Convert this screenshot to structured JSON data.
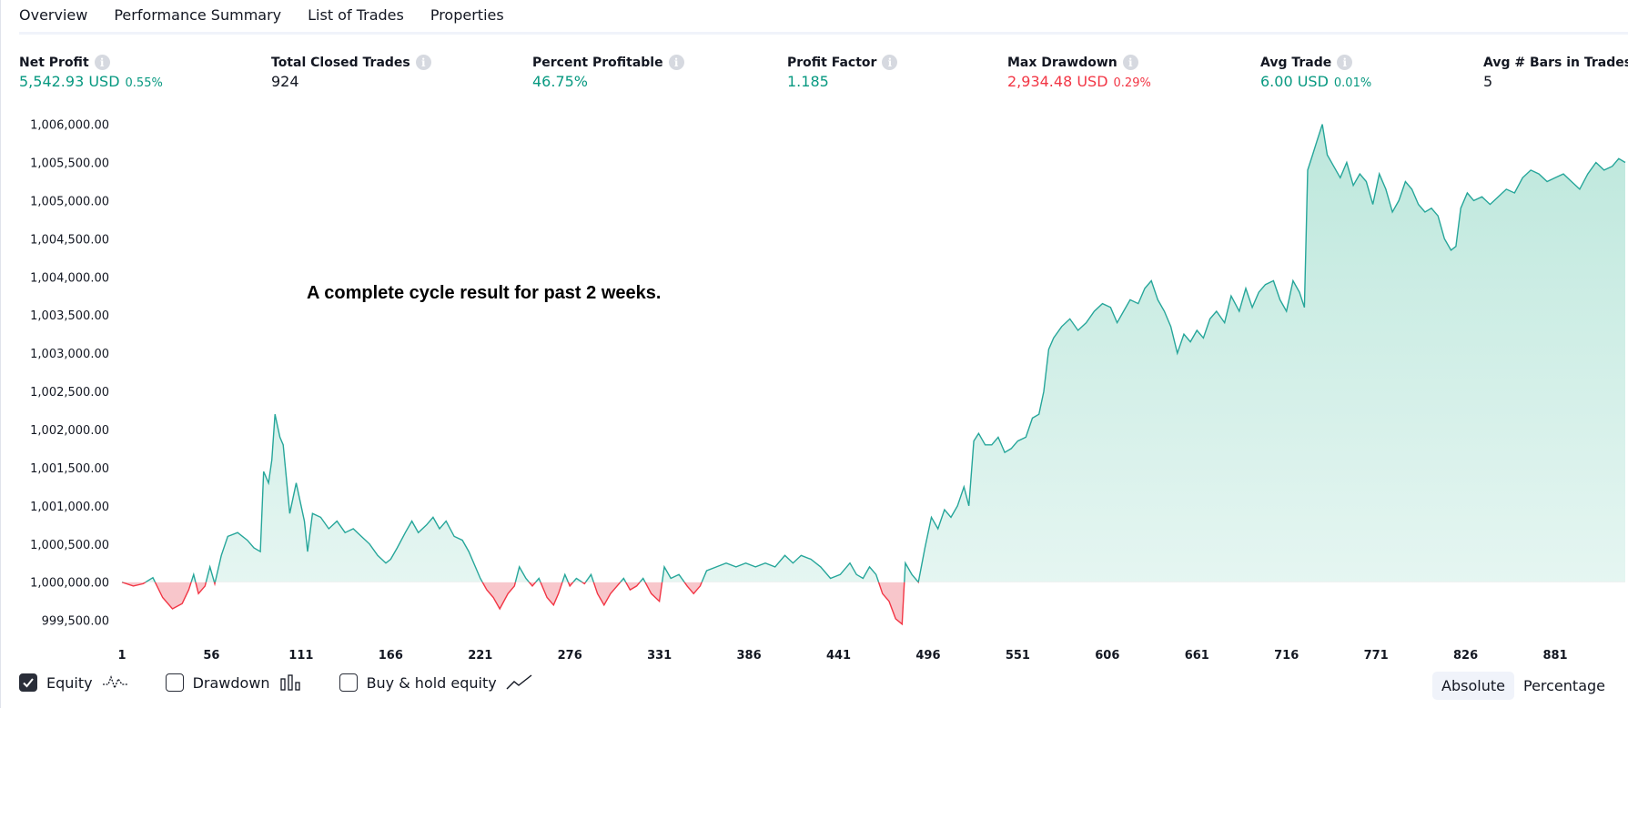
{
  "tabs": [
    {
      "label": "Overview",
      "active": true
    },
    {
      "label": "Performance Summary",
      "active": false
    },
    {
      "label": "List of Trades",
      "active": false
    },
    {
      "label": "Properties",
      "active": false
    }
  ],
  "stats": [
    {
      "label": "Net Profit",
      "value": "5,542.93 USD",
      "sub": "0.55%",
      "color": "green"
    },
    {
      "label": "Total Closed Trades",
      "value": "924",
      "sub": "",
      "color": "dark"
    },
    {
      "label": "Percent Profitable",
      "value": "46.75%",
      "sub": "",
      "color": "green"
    },
    {
      "label": "Profit Factor",
      "value": "1.185",
      "sub": "",
      "color": "green"
    },
    {
      "label": "Max Drawdown",
      "value": "2,934.48 USD",
      "sub": "0.29%",
      "color": "red"
    },
    {
      "label": "Avg Trade",
      "value": "6.00 USD",
      "sub": "0.01%",
      "color": "green"
    },
    {
      "label": "Avg # Bars in Trades",
      "value": "5",
      "sub": "",
      "color": "dark"
    }
  ],
  "annotation": "A complete cycle result for past 2 weeks.",
  "legend": {
    "equity_label": "Equity",
    "drawdown_label": "Drawdown",
    "buyhold_label": "Buy & hold equity"
  },
  "toggle": {
    "absolute_label": "Absolute",
    "percentage_label": "Percentage"
  },
  "colors": {
    "positive": "#26a69a",
    "negative": "#f23645",
    "positive_fill": "#cdeee6",
    "negative_fill": "#fcd6d9"
  },
  "chart_data": {
    "type": "area",
    "baseline": 1000000,
    "y_ticks": [
      "1,006,000.00",
      "1,005,500.00",
      "1,005,000.00",
      "1,004,500.00",
      "1,004,000.00",
      "1,003,500.00",
      "1,003,000.00",
      "1,002,500.00",
      "1,002,000.00",
      "1,001,500.00",
      "1,001,000.00",
      "1,000,500.00",
      "1,000,000.00",
      "999,500.00"
    ],
    "y_tick_values": [
      1006000,
      1005500,
      1005000,
      1004500,
      1004000,
      1003500,
      1003000,
      1002500,
      1002000,
      1001500,
      1001000,
      1000500,
      1000000,
      999500
    ],
    "x_ticks": [
      "1",
      "56",
      "111",
      "166",
      "221",
      "276",
      "331",
      "386",
      "441",
      "496",
      "551",
      "606",
      "661",
      "716",
      "771",
      "826",
      "881"
    ],
    "x_tick_values": [
      1,
      56,
      111,
      166,
      221,
      276,
      331,
      386,
      441,
      496,
      551,
      606,
      661,
      716,
      771,
      826,
      881
    ],
    "xlim": [
      1,
      924
    ],
    "ylim": [
      999400,
      1006150
    ],
    "series": [
      {
        "points": [
          [
            1,
            1000000
          ],
          [
            8,
            999950
          ],
          [
            14,
            999980
          ],
          [
            20,
            1000060
          ],
          [
            26,
            999800
          ],
          [
            32,
            999650
          ],
          [
            38,
            999720
          ],
          [
            42,
            999900
          ],
          [
            45,
            1000100
          ],
          [
            48,
            999850
          ],
          [
            52,
            999950
          ],
          [
            55,
            1000200
          ],
          [
            58,
            999980
          ],
          [
            62,
            1000350
          ],
          [
            66,
            1000600
          ],
          [
            72,
            1000650
          ],
          [
            78,
            1000550
          ],
          [
            82,
            1000450
          ],
          [
            86,
            1000400
          ],
          [
            88,
            1001450
          ],
          [
            91,
            1001300
          ],
          [
            93,
            1001600
          ],
          [
            95,
            1002200
          ],
          [
            98,
            1001900
          ],
          [
            100,
            1001800
          ],
          [
            104,
            1000900
          ],
          [
            108,
            1001300
          ],
          [
            111,
            1001000
          ],
          [
            113,
            1000800
          ],
          [
            115,
            1000400
          ],
          [
            118,
            1000900
          ],
          [
            123,
            1000850
          ],
          [
            128,
            1000700
          ],
          [
            133,
            1000800
          ],
          [
            138,
            1000650
          ],
          [
            143,
            1000700
          ],
          [
            148,
            1000600
          ],
          [
            153,
            1000500
          ],
          [
            158,
            1000350
          ],
          [
            163,
            1000250
          ],
          [
            166,
            1000300
          ],
          [
            170,
            1000450
          ],
          [
            175,
            1000650
          ],
          [
            179,
            1000800
          ],
          [
            183,
            1000650
          ],
          [
            188,
            1000750
          ],
          [
            192,
            1000850
          ],
          [
            196,
            1000700
          ],
          [
            200,
            1000800
          ],
          [
            205,
            1000600
          ],
          [
            210,
            1000550
          ],
          [
            214,
            1000400
          ],
          [
            218,
            1000200
          ],
          [
            221,
            1000050
          ],
          [
            225,
            999900
          ],
          [
            229,
            999800
          ],
          [
            233,
            999650
          ],
          [
            238,
            999850
          ],
          [
            242,
            999950
          ],
          [
            245,
            1000200
          ],
          [
            249,
            1000050
          ],
          [
            253,
            999950
          ],
          [
            257,
            1000050
          ],
          [
            262,
            999800
          ],
          [
            266,
            999700
          ],
          [
            269,
            999850
          ],
          [
            273,
            1000100
          ],
          [
            276,
            999950
          ],
          [
            280,
            1000050
          ],
          [
            285,
            999980
          ],
          [
            289,
            1000100
          ],
          [
            293,
            999850
          ],
          [
            297,
            999700
          ],
          [
            301,
            999850
          ],
          [
            305,
            999950
          ],
          [
            309,
            1000050
          ],
          [
            313,
            999900
          ],
          [
            317,
            999950
          ],
          [
            321,
            1000050
          ],
          [
            326,
            999850
          ],
          [
            331,
            999750
          ],
          [
            334,
            1000200
          ],
          [
            338,
            1000050
          ],
          [
            343,
            1000100
          ],
          [
            348,
            999950
          ],
          [
            352,
            999850
          ],
          [
            356,
            999950
          ],
          [
            360,
            1000150
          ],
          [
            366,
            1000200
          ],
          [
            372,
            1000250
          ],
          [
            378,
            1000200
          ],
          [
            384,
            1000250
          ],
          [
            390,
            1000200
          ],
          [
            396,
            1000250
          ],
          [
            402,
            1000200
          ],
          [
            408,
            1000350
          ],
          [
            413,
            1000250
          ],
          [
            418,
            1000350
          ],
          [
            424,
            1000300
          ],
          [
            430,
            1000200
          ],
          [
            436,
            1000050
          ],
          [
            442,
            1000100
          ],
          [
            448,
            1000250
          ],
          [
            452,
            1000100
          ],
          [
            456,
            1000050
          ],
          [
            460,
            1000200
          ],
          [
            464,
            1000100
          ],
          [
            468,
            999850
          ],
          [
            472,
            999750
          ],
          [
            476,
            999520
          ],
          [
            480,
            999450
          ],
          [
            482,
            1000250
          ],
          [
            486,
            1000100
          ],
          [
            490,
            1000000
          ],
          [
            494,
            1000450
          ],
          [
            498,
            1000850
          ],
          [
            502,
            1000700
          ],
          [
            506,
            1000950
          ],
          [
            510,
            1000850
          ],
          [
            514,
            1001000
          ],
          [
            518,
            1001250
          ],
          [
            521,
            1001000
          ],
          [
            524,
            1001850
          ],
          [
            527,
            1001950
          ],
          [
            531,
            1001800
          ],
          [
            535,
            1001800
          ],
          [
            539,
            1001900
          ],
          [
            543,
            1001700
          ],
          [
            547,
            1001750
          ],
          [
            551,
            1001850
          ],
          [
            556,
            1001900
          ],
          [
            560,
            1002150
          ],
          [
            564,
            1002200
          ],
          [
            567,
            1002500
          ],
          [
            570,
            1003050
          ],
          [
            573,
            1003200
          ],
          [
            578,
            1003350
          ],
          [
            583,
            1003450
          ],
          [
            588,
            1003300
          ],
          [
            593,
            1003400
          ],
          [
            598,
            1003550
          ],
          [
            603,
            1003650
          ],
          [
            608,
            1003600
          ],
          [
            612,
            1003400
          ],
          [
            616,
            1003550
          ],
          [
            620,
            1003700
          ],
          [
            625,
            1003650
          ],
          [
            629,
            1003850
          ],
          [
            633,
            1003950
          ],
          [
            637,
            1003700
          ],
          [
            641,
            1003550
          ],
          [
            645,
            1003350
          ],
          [
            649,
            1003000
          ],
          [
            653,
            1003250
          ],
          [
            657,
            1003150
          ],
          [
            661,
            1003300
          ],
          [
            665,
            1003200
          ],
          [
            669,
            1003450
          ],
          [
            673,
            1003550
          ],
          [
            678,
            1003400
          ],
          [
            682,
            1003750
          ],
          [
            687,
            1003550
          ],
          [
            691,
            1003850
          ],
          [
            695,
            1003600
          ],
          [
            699,
            1003800
          ],
          [
            703,
            1003900
          ],
          [
            708,
            1003950
          ],
          [
            712,
            1003700
          ],
          [
            716,
            1003550
          ],
          [
            720,
            1003950
          ],
          [
            724,
            1003800
          ],
          [
            727,
            1003600
          ],
          [
            729,
            1005400
          ],
          [
            732,
            1005600
          ],
          [
            735,
            1005800
          ],
          [
            738,
            1006000
          ],
          [
            741,
            1005600
          ],
          [
            745,
            1005450
          ],
          [
            749,
            1005300
          ],
          [
            753,
            1005500
          ],
          [
            757,
            1005200
          ],
          [
            761,
            1005350
          ],
          [
            765,
            1005250
          ],
          [
            769,
            1004950
          ],
          [
            773,
            1005350
          ],
          [
            777,
            1005150
          ],
          [
            781,
            1004850
          ],
          [
            785,
            1005000
          ],
          [
            789,
            1005250
          ],
          [
            793,
            1005150
          ],
          [
            797,
            1004950
          ],
          [
            801,
            1004850
          ],
          [
            805,
            1004900
          ],
          [
            809,
            1004800
          ],
          [
            813,
            1004500
          ],
          [
            817,
            1004350
          ],
          [
            820,
            1004400
          ],
          [
            823,
            1004900
          ],
          [
            827,
            1005100
          ],
          [
            831,
            1005000
          ],
          [
            836,
            1005050
          ],
          [
            841,
            1004950
          ],
          [
            846,
            1005050
          ],
          [
            851,
            1005150
          ],
          [
            856,
            1005100
          ],
          [
            861,
            1005300
          ],
          [
            866,
            1005400
          ],
          [
            871,
            1005350
          ],
          [
            876,
            1005250
          ],
          [
            881,
            1005300
          ],
          [
            886,
            1005350
          ],
          [
            891,
            1005250
          ],
          [
            896,
            1005150
          ],
          [
            901,
            1005350
          ],
          [
            906,
            1005500
          ],
          [
            911,
            1005400
          ],
          [
            916,
            1005450
          ],
          [
            920,
            1005550
          ],
          [
            924,
            1005500
          ]
        ]
      }
    ]
  }
}
